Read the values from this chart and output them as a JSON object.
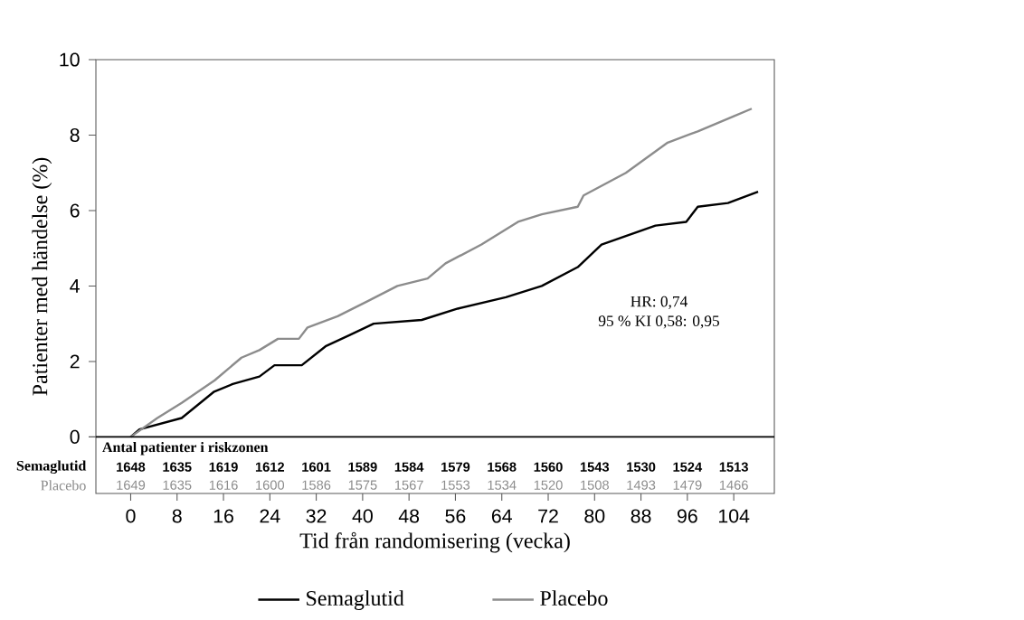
{
  "chart_data": {
    "type": "line",
    "xlabel": "Tid från randomisering (vecka)",
    "ylabel": "Patienter med händelse (%)",
    "xlim": [
      -6,
      111
    ],
    "ylim": [
      -1.5,
      10
    ],
    "xticks": [
      0,
      8,
      16,
      24,
      32,
      40,
      48,
      56,
      64,
      72,
      80,
      88,
      96,
      104
    ],
    "yticks": [
      0,
      2,
      4,
      6,
      8,
      10
    ],
    "legend": "bottom",
    "grid": false,
    "marker": "none",
    "line_style": "solid",
    "ref_lines": [
      {
        "axis": "y",
        "value": 0,
        "color": "#000000"
      }
    ],
    "series": [
      {
        "name": "Semaglutid",
        "color": "#000000",
        "x": [
          0,
          1.5,
          8.8,
          14.4,
          17.6,
          22.2,
          24.8,
          29.5,
          33.6,
          37.8,
          41.9,
          50.2,
          56.4,
          64.7,
          70.9,
          77.1,
          81.2,
          90.5,
          95.8,
          97.8,
          103,
          108.2
        ],
        "values": [
          0,
          0.2,
          0.5,
          1.2,
          1.4,
          1.6,
          1.9,
          1.9,
          2.4,
          2.7,
          3.0,
          3.1,
          3.4,
          3.7,
          4.0,
          4.5,
          5.1,
          5.6,
          5.7,
          6.1,
          6.2,
          6.5
        ]
      },
      {
        "name": "Placebo",
        "color": "#8c8c8c",
        "x": [
          0,
          4.6,
          8.8,
          14.5,
          19.1,
          22.2,
          25.4,
          29,
          30.5,
          35.7,
          40.9,
          46,
          51.2,
          54.3,
          60.5,
          66.8,
          70.9,
          77.1,
          78.1,
          85.4,
          92.6,
          97.8,
          104,
          107.1
        ],
        "values": [
          0,
          0.5,
          0.9,
          1.5,
          2.1,
          2.3,
          2.6,
          2.6,
          2.9,
          3.2,
          3.6,
          4.0,
          4.2,
          4.6,
          5.1,
          5.7,
          5.9,
          6.1,
          6.4,
          7.0,
          7.8,
          8.1,
          8.5,
          8.7
        ]
      }
    ],
    "annotations": [
      "HR: 0,74",
      "95 % KI 0,58: 0,95",
      "Antal patienter i riskzonen",
      "Semaglutid",
      "Placebo",
      "1648",
      "1635",
      "1619",
      "1612",
      "1601",
      "1589",
      "1584",
      "1579",
      "1568",
      "1560",
      "1543",
      "1530",
      "1524",
      "1513",
      "1649",
      "1635",
      "1616",
      "1600",
      "1586",
      "1575",
      "1567",
      "1553",
      "1534",
      "1520",
      "1508",
      "1493",
      "1479",
      "1466"
    ]
  }
}
